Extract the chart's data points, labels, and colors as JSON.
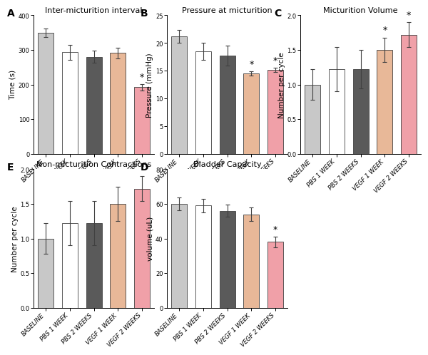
{
  "panels": [
    {
      "label": "A",
      "title": "Inter-micturition interval",
      "ylabel": "Time (s)",
      "ylim": [
        0,
        400
      ],
      "yticks": [
        0,
        100,
        200,
        300,
        400
      ],
      "categories": [
        "BASELINE",
        "PBS 1 WEEK",
        "PBS 2 WEEKS",
        "VEGF 1 WEEK",
        "VEGF 2 WEEKS"
      ],
      "values": [
        350,
        293,
        280,
        291,
        192
      ],
      "errors": [
        12,
        22,
        18,
        15,
        10
      ],
      "colors": [
        "#c8c8c8",
        "#ffffff",
        "#5a5a5a",
        "#e8b898",
        "#f0a0a8"
      ],
      "sig": [
        false,
        false,
        false,
        false,
        true
      ],
      "row": 0,
      "col": 0
    },
    {
      "label": "B",
      "title": "Pressure at micturition",
      "ylabel": "Pressure (mmHg)",
      "ylim": [
        0,
        25
      ],
      "yticks": [
        0,
        5,
        10,
        15,
        20,
        25
      ],
      "categories": [
        "BASELINE",
        "PBS 1 WEEK",
        "PBS 2 WEEKS",
        "VEGF 1 WEEK",
        "VEGF 2 WEEKS"
      ],
      "values": [
        21.2,
        18.5,
        17.7,
        14.5,
        15.1
      ],
      "errors": [
        1.2,
        1.5,
        1.8,
        0.4,
        0.4
      ],
      "colors": [
        "#c8c8c8",
        "#ffffff",
        "#5a5a5a",
        "#e8b898",
        "#f0a0a8"
      ],
      "sig": [
        false,
        false,
        false,
        true,
        true
      ],
      "row": 0,
      "col": 1
    },
    {
      "label": "C",
      "title": "Micturition Volume",
      "ylabel": "Number per cycle",
      "ylim": [
        0.0,
        2.0
      ],
      "yticks": [
        0.0,
        0.5,
        1.0,
        1.5,
        2.0
      ],
      "categories": [
        "BASELINE",
        "PBS 1 WEEK",
        "PBS 2 WEEKS",
        "VEGF 1 WEEK",
        "VEGF 2 WEEKS"
      ],
      "values": [
        1.0,
        1.22,
        1.22,
        1.5,
        1.72
      ],
      "errors": [
        0.22,
        0.32,
        0.28,
        0.18,
        0.18
      ],
      "colors": [
        "#c8c8c8",
        "#ffffff",
        "#5a5a5a",
        "#e8b898",
        "#f0a0a8"
      ],
      "sig": [
        false,
        false,
        false,
        true,
        true
      ],
      "row": 0,
      "col": 2
    },
    {
      "label": "E",
      "title": "Non-micturition Contractions",
      "ylabel": "Number per cycle",
      "ylim": [
        0.0,
        2.0
      ],
      "yticks": [
        0.0,
        0.5,
        1.0,
        1.5,
        2.0
      ],
      "categories": [
        "BASELINE",
        "PBS 1 WEEK",
        "PBS 2 WEEKS",
        "VEGF 1 WEEK",
        "VEGF 2 WEEKS"
      ],
      "values": [
        1.0,
        1.22,
        1.22,
        1.5,
        1.72
      ],
      "errors": [
        0.22,
        0.32,
        0.32,
        0.25,
        0.18
      ],
      "colors": [
        "#c8c8c8",
        "#ffffff",
        "#5a5a5a",
        "#e8b898",
        "#f0a0a8"
      ],
      "sig": [
        false,
        false,
        false,
        false,
        false
      ],
      "row": 1,
      "col": 0
    },
    {
      "label": "D",
      "title": "Bladder Capacity",
      "ylabel": "volume (uL)",
      "ylim": [
        0,
        80
      ],
      "yticks": [
        0,
        20,
        40,
        60,
        80
      ],
      "categories": [
        "BASELINE",
        "PBS 1 WEEK",
        "PBS 2 WEEKS",
        "VEGF 1 WEEK",
        "VEGF 2 WEEKS"
      ],
      "values": [
        60,
        59,
        56,
        54,
        38
      ],
      "errors": [
        3.5,
        4.0,
        3.5,
        4.0,
        3.0
      ],
      "colors": [
        "#c8c8c8",
        "#ffffff",
        "#5a5a5a",
        "#e8b898",
        "#f0a0a8"
      ],
      "sig": [
        false,
        false,
        false,
        false,
        true
      ],
      "row": 1,
      "col": 1
    }
  ],
  "bar_edgecolor": "#404040",
  "errorbar_color": "#404040",
  "sig_fontsize": 9,
  "label_fontsize": 10,
  "title_fontsize": 8,
  "tick_fontsize": 6,
  "axis_label_fontsize": 7.5,
  "background_color": "#ffffff"
}
